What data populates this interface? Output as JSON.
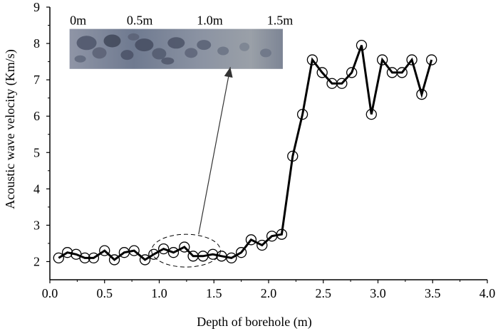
{
  "chart_data": {
    "type": "line",
    "xlabel": "Depth of borehole (m)",
    "ylabel": "Acoustic wave velocity (Km/s)",
    "xlim": [
      0.0,
      4.0
    ],
    "ylim": [
      1.5,
      9
    ],
    "x_ticks": [
      "0.0",
      "0.5",
      "1.0",
      "1.5",
      "2.0",
      "2.5",
      "3.0",
      "3.5",
      "4.0"
    ],
    "y_ticks": [
      "2",
      "3",
      "4",
      "5",
      "6",
      "7",
      "8",
      "9"
    ],
    "grid": false,
    "legend": "none",
    "marker": "open-circle",
    "line_color": "#000000",
    "series": [
      {
        "x": [
          0.08,
          0.16,
          0.24,
          0.32,
          0.4,
          0.5,
          0.59,
          0.68,
          0.77,
          0.87,
          0.95,
          1.04,
          1.13,
          1.23,
          1.31,
          1.4,
          1.49,
          1.57,
          1.66,
          1.75,
          1.84,
          1.94,
          2.03,
          2.12,
          2.22,
          2.31,
          2.4,
          2.49,
          2.58,
          2.67,
          2.76,
          2.85,
          2.94,
          3.04,
          3.13,
          3.22,
          3.31,
          3.4,
          3.49
        ],
        "values": [
          2.1,
          2.25,
          2.2,
          2.1,
          2.1,
          2.3,
          2.05,
          2.25,
          2.3,
          2.05,
          2.2,
          2.35,
          2.25,
          2.4,
          2.15,
          2.15,
          2.2,
          2.15,
          2.1,
          2.25,
          2.6,
          2.45,
          2.7,
          2.75,
          4.9,
          6.05,
          7.55,
          7.2,
          6.9,
          6.9,
          7.2,
          7.95,
          6.05,
          7.55,
          7.2,
          7.2,
          7.55,
          6.6,
          7.55
        ]
      }
    ],
    "annotations": {
      "highlight_region": {
        "x_range": [
          0.93,
          1.56
        ],
        "y_range": [
          1.85,
          2.75
        ]
      },
      "arrow": {
        "from": [
          1.36,
          2.75
        ],
        "to": [
          1.65,
          7.35
        ]
      },
      "core_photo": {
        "x_range": [
          0.18,
          2.13
        ],
        "y_range": [
          7.3,
          8.4
        ],
        "scale_labels": [
          "0m",
          "0.5m",
          "1.0m",
          "1.5m"
        ]
      }
    }
  }
}
